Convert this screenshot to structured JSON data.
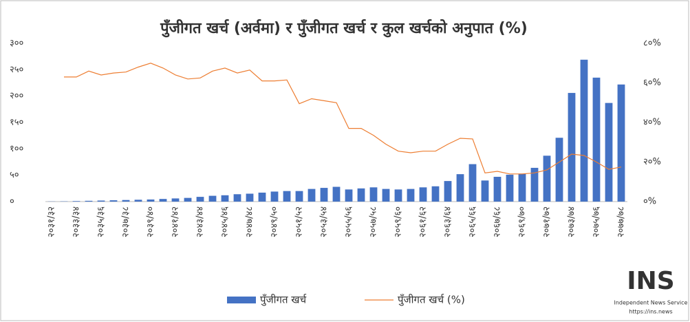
{
  "chart_data": {
    "type": "bar_line",
    "title": "पुँजीगत खर्च (अर्वमा) र पुँजीगत खर्च र कुल खर्चको अनुपात (%)",
    "categories": [
      "२०३१/३२",
      null,
      "२०३३/३४",
      null,
      "२०३५/३६",
      null,
      "२०३७/३८",
      null,
      "२०३९/४०",
      null,
      "२०४१/४२",
      null,
      "२०४३/४४",
      null,
      "२०४५/४६",
      null,
      "२०४७/४८",
      null,
      "२०४९/५०",
      null,
      "२०५१/५२",
      null,
      "२०५३/५४",
      null,
      "२०५५/५६",
      null,
      "२०५७/५८",
      null,
      "२०५९/६०",
      null,
      "२०६१/६२",
      null,
      "२०६३/६४",
      null,
      "२०६५/६६",
      null,
      "२०६७/६८",
      null,
      "२०६९/७०",
      null,
      "२०७१/७२",
      null,
      "२०७३/७४",
      null,
      "२०७५/७६",
      null,
      "२०७७/७८"
    ],
    "series": [
      {
        "name": "पुँजीगत खर्च",
        "kind": "bar",
        "color": "#4472c4",
        "values": [
          0.3,
          0.5,
          1,
          1.5,
          2,
          2.5,
          3,
          3.5,
          4,
          5,
          6,
          7,
          9,
          11,
          12,
          14,
          15,
          17,
          19,
          20,
          20,
          24,
          26,
          28,
          23,
          25,
          27,
          24,
          23,
          24,
          27,
          29,
          39,
          52,
          71,
          40,
          47,
          51,
          53,
          64,
          87,
          121,
          206,
          269,
          235,
          187,
          222
        ]
      },
      {
        "name": "पुँजीगत खर्च (%)",
        "kind": "line",
        "axis": "y2",
        "color": "#ed7d31",
        "values": [
          null,
          63,
          63,
          66,
          64,
          65,
          65.5,
          68,
          70,
          67.5,
          64,
          62,
          62.5,
          66,
          67.5,
          65,
          66.5,
          61,
          61,
          61.5,
          49.5,
          52,
          51,
          50,
          37,
          37,
          33.5,
          29,
          25.5,
          24.7,
          25.5,
          25.5,
          29,
          32,
          31.7,
          14.5,
          15.3,
          14,
          14,
          14.5,
          16,
          20,
          24,
          23.3,
          20,
          16.3,
          17.5
        ]
      }
    ],
    "ylim": [
      0,
      300
    ],
    "yticks": [
      {
        "value": 0,
        "label": "०"
      },
      {
        "value": 50,
        "label": "५०"
      },
      {
        "value": 100,
        "label": "१००"
      },
      {
        "value": 150,
        "label": "१५०"
      },
      {
        "value": 200,
        "label": "२००"
      },
      {
        "value": 250,
        "label": "२५०"
      },
      {
        "value": 300,
        "label": "३००"
      }
    ],
    "y2lim": [
      0,
      80
    ],
    "y2ticks": [
      {
        "value": 0,
        "label": "०%"
      },
      {
        "value": 20,
        "label": "२०%"
      },
      {
        "value": 40,
        "label": "४०%"
      },
      {
        "value": 60,
        "label": "६०%"
      },
      {
        "value": 80,
        "label": "८०%"
      }
    ],
    "legend": "bottom"
  },
  "watermark": {
    "logo": "INS",
    "name": "Independent News Service",
    "url": "https://ins.news"
  }
}
